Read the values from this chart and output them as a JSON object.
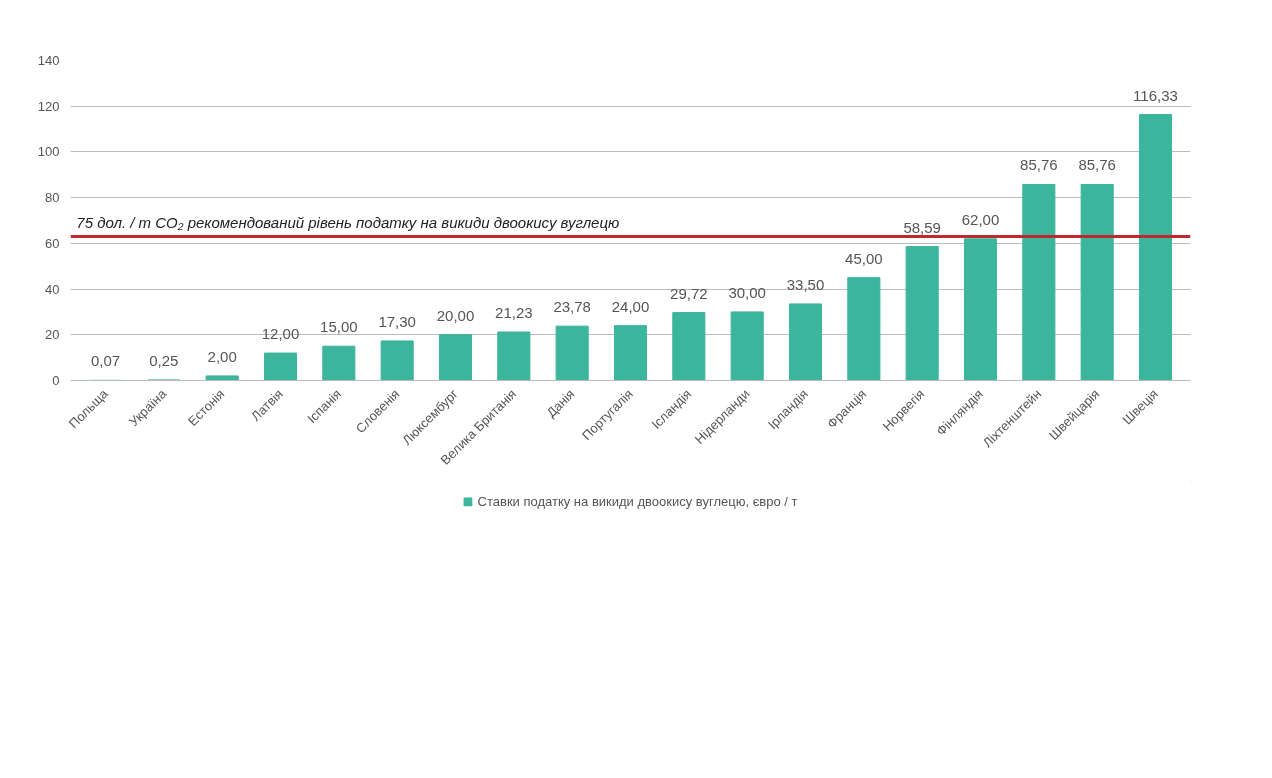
{
  "chart_data": {
    "type": "bar",
    "categories": [
      "Польща",
      "Україна",
      "Естонія",
      "Латвія",
      "Іспанія",
      "Словенія",
      "Люксембург",
      "Велика Британія",
      "Данія",
      "Португалія",
      "Ісландія",
      "Нідерланди",
      "Ірландія",
      "Франція",
      "Норвегія",
      "Фінляндія",
      "Ліхтенштейн",
      "Швейцарія",
      "Швеція"
    ],
    "series": [
      {
        "name": "Ставки податку на викиди двоокису вуглецю, євро / т",
        "color": "#3bb59b",
        "values": [
          0.07,
          0.25,
          2.0,
          12.0,
          15.0,
          17.3,
          20.0,
          21.23,
          23.78,
          24.0,
          29.72,
          30.0,
          33.5,
          45.0,
          58.59,
          62.0,
          85.76,
          85.76,
          116.33
        ],
        "value_labels": [
          "0,07",
          "0,25",
          "2,00",
          "12,00",
          "15,00",
          "17,30",
          "20,00",
          "21,23",
          "23,78",
          "24,00",
          "29,72",
          "30,00",
          "33,50",
          "45,00",
          "58,59",
          "62,00",
          "85,76",
          "85,76",
          "116,33"
        ]
      }
    ],
    "ylim": [
      0,
      140
    ],
    "yticks": [
      0,
      20,
      40,
      60,
      80,
      100,
      120,
      140
    ],
    "grid": "y",
    "legend": "bottom",
    "ref_lines": [
      {
        "axis": "y",
        "value": 63,
        "label": "75 дол. / т CO₂ рекомендований рівень податку на викиди двоокису вуглецю",
        "color": "#c0282d",
        "line_style": "solid"
      }
    ]
  }
}
